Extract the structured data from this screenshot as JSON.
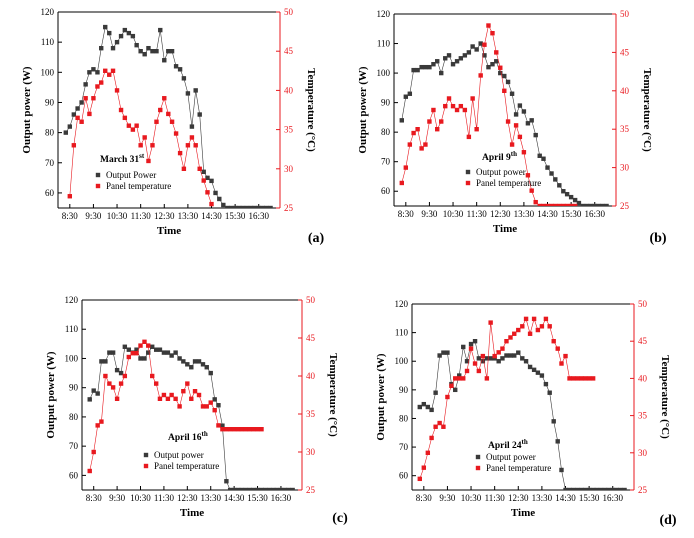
{
  "chart_data": [
    {
      "type": "line",
      "panel_label": "(a)",
      "date_main": "March 31",
      "date_sup": "st",
      "xlabel": "Time",
      "ylabel": "Output power (W)",
      "y2label": "Temperature (°C)",
      "ylim": [
        55,
        120
      ],
      "y2lim": [
        25,
        50
      ],
      "yticks": [
        60,
        70,
        80,
        90,
        100,
        110,
        120
      ],
      "y2ticks": [
        25,
        30,
        35,
        40,
        45,
        50
      ],
      "xlim": [
        8.0,
        17.4
      ],
      "xticks": [
        8.5,
        9.5,
        10.5,
        11.5,
        12.5,
        13.5,
        14.5,
        15.5,
        16.5
      ],
      "xticklabels": [
        "8:30",
        "9:30",
        "10:30",
        "11:30",
        "12:30",
        "13:30",
        "14:30",
        "15:30",
        "16:30"
      ],
      "legend_order": [
        "power",
        "temp"
      ],
      "series": [
        {
          "key": "power",
          "name": "Output Power",
          "color": "#3a3a3a",
          "x": [
            8.33,
            8.5,
            8.67,
            8.83,
            9.0,
            9.17,
            9.33,
            9.5,
            9.67,
            9.83,
            10.0,
            10.17,
            10.33,
            10.5,
            10.67,
            10.83,
            11.0,
            11.17,
            11.33,
            11.5,
            11.67,
            11.83,
            12.0,
            12.17,
            12.33,
            12.5,
            12.67,
            12.83,
            13.0,
            13.17,
            13.33,
            13.5,
            13.67,
            13.83,
            14.0,
            14.17,
            14.33,
            14.5,
            14.67,
            14.83,
            15.0,
            15.17,
            15.33,
            15.5,
            15.67,
            15.83,
            16.0,
            16.17,
            16.33,
            16.5,
            16.67,
            16.83,
            17.0
          ],
          "values": [
            80,
            82,
            86,
            88,
            90,
            96,
            100,
            101,
            100,
            108,
            115,
            113,
            108,
            110,
            112,
            114,
            113,
            112,
            109,
            107,
            106,
            108,
            107,
            107,
            114,
            104,
            107,
            107,
            102,
            101,
            98,
            93,
            82,
            94,
            86,
            67,
            65,
            64,
            60,
            58,
            56,
            55,
            55,
            55,
            55,
            55,
            55,
            55,
            55,
            55,
            55,
            55,
            55
          ]
        },
        {
          "key": "temp",
          "name": "Panel temperature",
          "color": "#e8191f",
          "x": [
            8.5,
            8.67,
            8.83,
            9.0,
            9.17,
            9.33,
            9.5,
            9.67,
            9.83,
            10.0,
            10.17,
            10.33,
            10.5,
            10.67,
            10.83,
            11.0,
            11.17,
            11.33,
            11.5,
            11.67,
            11.83,
            12.0,
            12.17,
            12.33,
            12.5,
            12.67,
            12.83,
            13.0,
            13.17,
            13.33,
            13.5,
            13.67,
            13.83,
            14.0,
            14.17,
            14.33,
            14.5
          ],
          "values": [
            26.5,
            33,
            36.5,
            36,
            39,
            37,
            39,
            40.5,
            41,
            42.5,
            42,
            42.5,
            40,
            37.5,
            36.5,
            35.5,
            35,
            35.5,
            33,
            34,
            31,
            33,
            36,
            37.5,
            39,
            37,
            36,
            34.5,
            32,
            30,
            33,
            34,
            33,
            30,
            28.5,
            27,
            25.5
          ]
        }
      ]
    },
    {
      "type": "line",
      "panel_label": "(b)",
      "date_main": "April 9",
      "date_sup": "th",
      "xlabel": "Time",
      "ylabel": "Output power (W)",
      "y2label": "Temperature (°C)",
      "ylim": [
        55,
        120
      ],
      "y2lim": [
        25,
        50
      ],
      "yticks": [
        60,
        70,
        80,
        90,
        100,
        110,
        120
      ],
      "y2ticks": [
        25,
        30,
        35,
        40,
        45,
        50
      ],
      "xlim": [
        8.0,
        17.4
      ],
      "xticks": [
        8.5,
        9.5,
        10.5,
        11.5,
        12.5,
        13.5,
        14.5,
        15.5,
        16.5
      ],
      "xticklabels": [
        "8:30",
        "9:30",
        "10:30",
        "11:30",
        "12:30",
        "13:30",
        "14:30",
        "15:30",
        "16:30"
      ],
      "legend_order": [
        "power",
        "temp"
      ],
      "series": [
        {
          "key": "power",
          "name": "Output power",
          "color": "#3a3a3a",
          "x": [
            8.33,
            8.5,
            8.67,
            8.83,
            9.0,
            9.17,
            9.33,
            9.5,
            9.67,
            9.83,
            10.0,
            10.17,
            10.33,
            10.5,
            10.67,
            10.83,
            11.0,
            11.17,
            11.33,
            11.5,
            11.67,
            11.83,
            12.0,
            12.17,
            12.33,
            12.5,
            12.67,
            12.83,
            13.0,
            13.17,
            13.33,
            13.5,
            13.67,
            13.83,
            14.0,
            14.17,
            14.33,
            14.5,
            14.67,
            14.83,
            15.0,
            15.17,
            15.33,
            15.5,
            15.67,
            15.83,
            16.0,
            16.17,
            16.33,
            16.5,
            16.67,
            16.83,
            17.0
          ],
          "values": [
            84,
            92,
            93,
            101,
            101,
            102,
            102,
            102,
            103,
            104,
            100,
            105,
            106,
            103,
            104,
            105,
            106,
            107,
            109,
            108,
            110,
            106,
            102,
            103,
            104,
            100,
            99,
            97,
            93,
            86,
            89,
            87,
            83,
            84,
            79,
            72,
            71,
            68,
            66,
            64,
            62,
            60,
            59,
            58,
            57,
            56,
            55,
            55,
            55,
            55,
            55,
            55,
            55
          ]
        },
        {
          "key": "temp",
          "name": "Panel temperature",
          "color": "#e8191f",
          "x": [
            8.33,
            8.5,
            8.67,
            8.83,
            9.0,
            9.17,
            9.33,
            9.5,
            9.67,
            9.83,
            10.0,
            10.17,
            10.33,
            10.5,
            10.67,
            10.83,
            11.0,
            11.17,
            11.33,
            11.5,
            11.67,
            11.83,
            12.0,
            12.17,
            12.33,
            12.5,
            12.67,
            12.83,
            13.0,
            13.17,
            13.33,
            13.5,
            13.67,
            13.83,
            14.0,
            14.17,
            14.33,
            14.5,
            14.67,
            14.83,
            15.0,
            15.17,
            15.33,
            15.5,
            15.67
          ],
          "values": [
            28,
            30,
            33,
            34.5,
            35,
            32.5,
            33,
            36,
            37.5,
            35,
            36,
            38,
            39,
            38,
            37.5,
            38,
            37.5,
            34,
            39,
            35,
            42,
            46,
            48.5,
            47.5,
            45,
            43,
            40,
            36,
            33,
            35.5,
            34,
            32,
            29,
            27,
            25.5,
            25,
            25,
            25,
            25,
            25,
            25,
            25,
            25,
            25,
            25
          ]
        }
      ]
    },
    {
      "type": "line",
      "panel_label": "(c)",
      "date_main": "April 16",
      "date_sup": "th",
      "xlabel": "Time",
      "ylabel": "Output power (W)",
      "y2label": "Temperature (°C)",
      "ylim": [
        55,
        120
      ],
      "y2lim": [
        25,
        50
      ],
      "yticks": [
        60,
        70,
        80,
        90,
        100,
        110,
        120
      ],
      "y2ticks": [
        25,
        30,
        35,
        40,
        45,
        50
      ],
      "xlim": [
        8.0,
        17.4
      ],
      "xticks": [
        8.5,
        9.5,
        10.5,
        11.5,
        12.5,
        13.5,
        14.5,
        15.5,
        16.5
      ],
      "xticklabels": [
        "8:30",
        "9:30",
        "10:30",
        "11:30",
        "12:30",
        "13:30",
        "14:30",
        "15:30",
        "16:30"
      ],
      "legend_order": [
        "power",
        "temp"
      ],
      "series": [
        {
          "key": "power",
          "name": "Output power",
          "color": "#3a3a3a",
          "x": [
            8.33,
            8.5,
            8.67,
            8.83,
            9.0,
            9.17,
            9.33,
            9.5,
            9.67,
            9.83,
            10.0,
            10.17,
            10.33,
            10.5,
            10.67,
            10.83,
            11.0,
            11.17,
            11.33,
            11.5,
            11.67,
            11.83,
            12.0,
            12.17,
            12.33,
            12.5,
            12.67,
            12.83,
            13.0,
            13.17,
            13.33,
            13.5,
            13.67,
            13.83,
            14.0,
            14.17,
            14.33,
            14.5,
            14.67,
            14.83,
            15.0,
            15.17,
            15.33,
            15.5,
            15.67,
            15.83,
            16.0,
            16.17,
            16.33,
            16.5,
            16.67,
            16.83,
            17.0
          ],
          "values": [
            86,
            89,
            88,
            99,
            99,
            102,
            102,
            96,
            95,
            104,
            103,
            102,
            103,
            100,
            100,
            102,
            104,
            103,
            103,
            102,
            102,
            101,
            102,
            100,
            99,
            98,
            97,
            99,
            99,
            98,
            97,
            95,
            86,
            84,
            77,
            58,
            55,
            55,
            55,
            55,
            55,
            55,
            55,
            55,
            55,
            55,
            55,
            55,
            55,
            55,
            55,
            55,
            55
          ]
        },
        {
          "key": "temp",
          "name": "Panel temperature",
          "color": "#e8191f",
          "x": [
            8.33,
            8.5,
            8.67,
            8.83,
            9.0,
            9.17,
            9.33,
            9.5,
            9.67,
            9.83,
            10.0,
            10.17,
            10.33,
            10.5,
            10.67,
            10.83,
            11.0,
            11.17,
            11.33,
            11.5,
            11.67,
            11.83,
            12.0,
            12.17,
            12.33,
            12.5,
            12.67,
            12.83,
            13.0,
            13.17,
            13.33,
            13.5,
            13.67,
            13.83,
            14.0,
            14.17,
            14.33,
            14.5,
            14.67,
            14.83,
            15.0,
            15.17,
            15.33,
            15.5,
            15.67
          ],
          "values": [
            27.5,
            30,
            33.5,
            34,
            40,
            39,
            38.5,
            37,
            39,
            40,
            42.5,
            43,
            43,
            44,
            44.5,
            44,
            40,
            39,
            37,
            37.5,
            37,
            37.5,
            37,
            36,
            38,
            39,
            37,
            38,
            37.5,
            36,
            36,
            36.5,
            35.5,
            33.5,
            33,
            33,
            33,
            33,
            33,
            33,
            33,
            33,
            33,
            33,
            33
          ]
        }
      ]
    },
    {
      "type": "line",
      "panel_label": "(d)",
      "date_main": "April 24",
      "date_sup": "th",
      "xlabel": "Time",
      "ylabel": "Output power (W)",
      "y2label": "Temperature (°C)",
      "ylim": [
        55,
        120
      ],
      "y2lim": [
        25,
        50
      ],
      "yticks": [
        60,
        70,
        80,
        90,
        100,
        110,
        120
      ],
      "y2ticks": [
        25,
        30,
        35,
        40,
        45,
        50
      ],
      "xlim": [
        8.0,
        17.4
      ],
      "xticks": [
        8.5,
        9.5,
        10.5,
        11.5,
        12.5,
        13.5,
        14.5,
        15.5,
        16.5
      ],
      "xticklabels": [
        "8:30",
        "9:30",
        "10:30",
        "11:30",
        "12:30",
        "13:30",
        "14:30",
        "15:30",
        "16:30"
      ],
      "legend_order": [
        "power",
        "temp"
      ],
      "series": [
        {
          "key": "power",
          "name": "Output power",
          "color": "#3a3a3a",
          "x": [
            8.33,
            8.5,
            8.67,
            8.83,
            9.0,
            9.17,
            9.33,
            9.5,
            9.67,
            9.83,
            10.0,
            10.17,
            10.33,
            10.5,
            10.67,
            10.83,
            11.0,
            11.17,
            11.33,
            11.5,
            11.67,
            11.83,
            12.0,
            12.17,
            12.33,
            12.5,
            12.67,
            12.83,
            13.0,
            13.17,
            13.33,
            13.5,
            13.67,
            13.83,
            14.0,
            14.17,
            14.33,
            14.5,
            14.67,
            14.83,
            15.0,
            15.17,
            15.33,
            15.5,
            15.67,
            15.83,
            16.0,
            16.17,
            16.33,
            16.5,
            16.67,
            16.83,
            17.0
          ],
          "values": [
            84,
            85,
            84,
            83,
            89,
            102,
            103,
            103,
            92,
            90,
            95,
            105,
            100,
            106,
            107,
            101,
            100,
            101,
            101,
            101,
            100,
            101,
            102,
            102,
            102,
            103,
            101,
            100,
            98,
            97,
            96,
            95,
            92,
            89,
            79,
            72,
            62,
            55,
            55,
            55,
            55,
            55,
            55,
            55,
            55,
            55,
            55,
            55,
            55,
            55,
            55,
            55,
            55
          ]
        },
        {
          "key": "temp",
          "name": "Panel temperature",
          "color": "#e8191f",
          "x": [
            8.33,
            8.5,
            8.67,
            8.83,
            9.0,
            9.17,
            9.33,
            9.5,
            9.67,
            9.83,
            10.0,
            10.17,
            10.33,
            10.5,
            10.67,
            10.83,
            11.0,
            11.17,
            11.33,
            11.5,
            11.67,
            11.83,
            12.0,
            12.17,
            12.33,
            12.5,
            12.67,
            12.83,
            13.0,
            13.17,
            13.33,
            13.5,
            13.67,
            13.83,
            14.0,
            14.17,
            14.33,
            14.5,
            14.67,
            14.83,
            15.0,
            15.17,
            15.33,
            15.5,
            15.67
          ],
          "values": [
            26.5,
            28,
            30,
            32,
            33.5,
            34,
            33.5,
            37.5,
            39,
            40,
            40,
            40,
            41,
            44,
            42,
            41,
            43,
            40,
            47.5,
            43,
            43.5,
            44,
            45,
            45.5,
            46,
            46.5,
            47,
            48,
            46,
            48,
            46.5,
            47,
            48,
            47,
            45,
            44,
            42,
            43,
            40,
            40,
            40,
            40,
            40,
            40,
            40
          ]
        }
      ]
    }
  ]
}
